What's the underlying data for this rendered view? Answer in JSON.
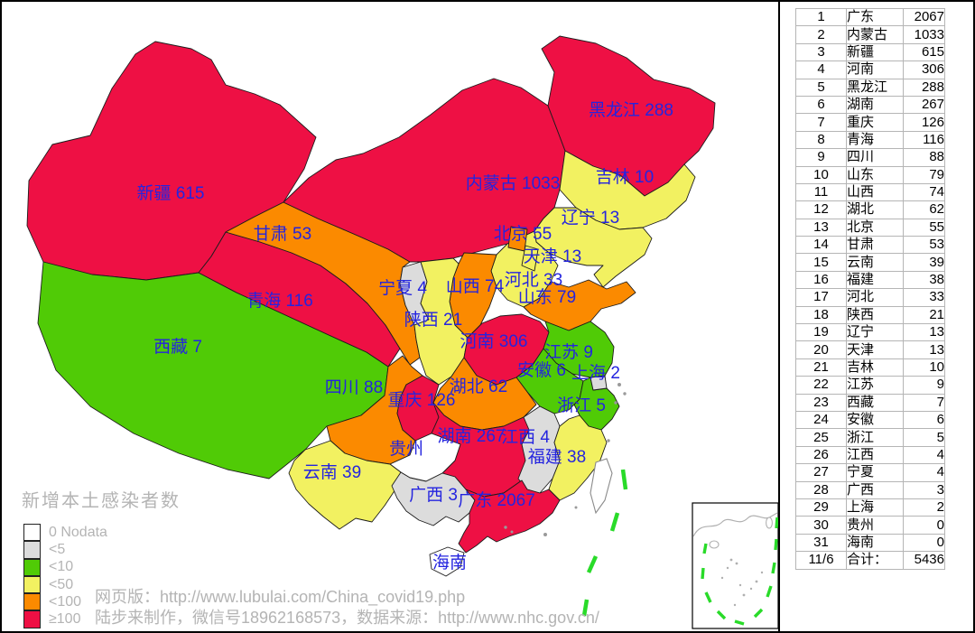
{
  "legend": {
    "title": "新增本土感染者数",
    "items": [
      {
        "label": "0 Nodata",
        "color": "#FFFFFF"
      },
      {
        "label": "<5",
        "color": "#DCDCDC"
      },
      {
        "label": "<10",
        "color": "#50CB06"
      },
      {
        "label": "<50",
        "color": "#F2F161"
      },
      {
        "label": "<100",
        "color": "#FB8A00"
      },
      {
        "label": "≥100",
        "color": "#EE1044"
      }
    ]
  },
  "footer": {
    "line1": "网页版：http://www.lubulai.com/China_covid19.php",
    "line2": "陆步来制作，微信号18962168573，数据来源：http://www.nhc.gov.cn/"
  },
  "map": {
    "label_color": "#2424DF",
    "provinces": [
      {
        "name": "新疆",
        "value": "615",
        "label": "新疆 615",
        "color": "#EE1044"
      },
      {
        "name": "西藏",
        "value": "7",
        "label": "西藏 7",
        "color": "#50CB06"
      },
      {
        "name": "青海",
        "value": "116",
        "label": "青海 116",
        "color": "#EE1044"
      },
      {
        "name": "甘肃",
        "value": "53",
        "label": "甘肃 53",
        "color": "#FB8A00"
      },
      {
        "name": "宁夏",
        "value": "4",
        "label": "宁夏 4",
        "color": "#DCDCDC"
      },
      {
        "name": "内蒙古",
        "value": "1033",
        "label": "内蒙古 1033",
        "color": "#EE1044"
      },
      {
        "name": "黑龙江",
        "value": "288",
        "label": "黑龙江 288",
        "color": "#EE1044"
      },
      {
        "name": "吉林",
        "value": "10",
        "label": "吉林 10",
        "color": "#F2F161"
      },
      {
        "name": "辽宁",
        "value": "13",
        "label": "辽宁 13",
        "color": "#F2F161"
      },
      {
        "name": "北京",
        "value": "55",
        "label": "北京 55",
        "color": "#FB8A00"
      },
      {
        "name": "天津",
        "value": "13",
        "label": "天津 13",
        "color": "#F2F161"
      },
      {
        "name": "河北",
        "value": "33",
        "label": "河北 33",
        "color": "#F2F161"
      },
      {
        "name": "山西",
        "value": "74",
        "label": "山西 74",
        "color": "#FB8A00"
      },
      {
        "name": "山东",
        "value": "79",
        "label": "山东 79",
        "color": "#FB8A00"
      },
      {
        "name": "陕西",
        "value": "21",
        "label": "陕西 21",
        "color": "#F2F161"
      },
      {
        "name": "河南",
        "value": "306",
        "label": "河南 306",
        "color": "#EE1044"
      },
      {
        "name": "江苏",
        "value": "9",
        "label": "江苏 9",
        "color": "#50CB06"
      },
      {
        "name": "安徽",
        "value": "6",
        "label": "安徽 6",
        "color": "#50CB06"
      },
      {
        "name": "上海",
        "value": "2",
        "label": "上海 2",
        "color": "#DCDCDC"
      },
      {
        "name": "湖北",
        "value": "62",
        "label": "湖北 62",
        "color": "#FB8A00"
      },
      {
        "name": "重庆",
        "value": "126",
        "label": "重庆 126",
        "color": "#EE1044"
      },
      {
        "name": "四川",
        "value": "88",
        "label": "四川 88",
        "color": "#FB8A00"
      },
      {
        "name": "浙江",
        "value": "5",
        "label": "浙江 5",
        "color": "#50CB06"
      },
      {
        "name": "湖南",
        "value": "267",
        "label": "湖南 267",
        "color": "#EE1044"
      },
      {
        "name": "江西",
        "value": "4",
        "label": "江西 4",
        "color": "#DCDCDC"
      },
      {
        "name": "贵州",
        "value": "0",
        "label": "贵州",
        "color": "#FFFFFF"
      },
      {
        "name": "福建",
        "value": "38",
        "label": "福建 38",
        "color": "#F2F161"
      },
      {
        "name": "云南",
        "value": "39",
        "label": "云南 39",
        "color": "#F2F161"
      },
      {
        "name": "广西",
        "value": "3",
        "label": "广西 3",
        "color": "#DCDCDC"
      },
      {
        "name": "广东",
        "value": "2067",
        "label": "广东 2067",
        "color": "#EE1044"
      },
      {
        "name": "海南",
        "value": "0",
        "label": "海南",
        "color": "#FFFFFF"
      }
    ]
  },
  "table": {
    "rows": [
      {
        "rank": "1",
        "name": "广东",
        "value": "2067"
      },
      {
        "rank": "2",
        "name": "内蒙古",
        "value": "1033"
      },
      {
        "rank": "3",
        "name": "新疆",
        "value": "615"
      },
      {
        "rank": "4",
        "name": "河南",
        "value": "306"
      },
      {
        "rank": "5",
        "name": "黑龙江",
        "value": "288"
      },
      {
        "rank": "6",
        "name": "湖南",
        "value": "267"
      },
      {
        "rank": "7",
        "name": "重庆",
        "value": "126"
      },
      {
        "rank": "8",
        "name": "青海",
        "value": "116"
      },
      {
        "rank": "9",
        "name": "四川",
        "value": "88"
      },
      {
        "rank": "10",
        "name": "山东",
        "value": "79"
      },
      {
        "rank": "11",
        "name": "山西",
        "value": "74"
      },
      {
        "rank": "12",
        "name": "湖北",
        "value": "62"
      },
      {
        "rank": "13",
        "name": "北京",
        "value": "55"
      },
      {
        "rank": "14",
        "name": "甘肃",
        "value": "53"
      },
      {
        "rank": "15",
        "name": "云南",
        "value": "39"
      },
      {
        "rank": "16",
        "name": "福建",
        "value": "38"
      },
      {
        "rank": "17",
        "name": "河北",
        "value": "33"
      },
      {
        "rank": "18",
        "name": "陕西",
        "value": "21"
      },
      {
        "rank": "19",
        "name": "辽宁",
        "value": "13"
      },
      {
        "rank": "20",
        "name": "天津",
        "value": "13"
      },
      {
        "rank": "21",
        "name": "吉林",
        "value": "10"
      },
      {
        "rank": "22",
        "name": "江苏",
        "value": "9"
      },
      {
        "rank": "23",
        "name": "西藏",
        "value": "7"
      },
      {
        "rank": "24",
        "name": "安徽",
        "value": "6"
      },
      {
        "rank": "25",
        "name": "浙江",
        "value": "5"
      },
      {
        "rank": "26",
        "name": "江西",
        "value": "4"
      },
      {
        "rank": "27",
        "name": "宁夏",
        "value": "4"
      },
      {
        "rank": "28",
        "name": "广西",
        "value": "3"
      },
      {
        "rank": "29",
        "name": "上海",
        "value": "2"
      },
      {
        "rank": "30",
        "name": "贵州",
        "value": "0"
      },
      {
        "rank": "31",
        "name": "海南",
        "value": "0"
      }
    ],
    "total_row": {
      "rank": "11/6",
      "name": "合计：",
      "value": "5436"
    }
  }
}
